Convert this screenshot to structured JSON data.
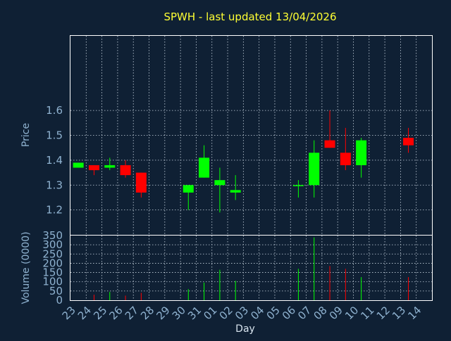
{
  "chart_data": {
    "type": "candlestick",
    "title": "SPWH - last updated 13/04/2026",
    "xlabel": "Day",
    "ylabel": "Price",
    "volume_label": "Volume (0000)",
    "x_ticks": [
      "23",
      "24",
      "25",
      "26",
      "27",
      "28",
      "29",
      "30",
      "31",
      "01",
      "02",
      "03",
      "04",
      "05",
      "06",
      "07",
      "08",
      "09",
      "10",
      "11",
      "12",
      "13",
      "14"
    ],
    "price_ylim": [
      1.1,
      1.9
    ],
    "price_ticks": [
      1.2,
      1.3,
      1.4,
      1.5,
      1.6
    ],
    "volume_ylim": [
      0,
      350
    ],
    "volume_ticks": [
      0,
      50,
      100,
      150,
      200,
      250,
      300,
      350
    ],
    "grid": true,
    "up_color": "#00ff00",
    "down_color": "#ff0000",
    "candles": [
      {
        "day": "23",
        "open": 1.37,
        "high": 1.39,
        "low": 1.37,
        "close": 1.39,
        "volume": 0
      },
      {
        "day": "24",
        "open": 1.38,
        "high": 1.38,
        "low": 1.34,
        "close": 1.36,
        "volume": 30
      },
      {
        "day": "25",
        "open": 1.37,
        "high": 1.41,
        "low": 1.36,
        "close": 1.38,
        "volume": 45
      },
      {
        "day": "26",
        "open": 1.38,
        "high": 1.4,
        "low": 1.33,
        "close": 1.34,
        "volume": 25
      },
      {
        "day": "27",
        "open": 1.35,
        "high": 1.35,
        "low": 1.25,
        "close": 1.27,
        "volume": 40
      },
      {
        "day": "30",
        "open": 1.27,
        "high": 1.3,
        "low": 1.2,
        "close": 1.3,
        "volume": 60
      },
      {
        "day": "31",
        "open": 1.33,
        "high": 1.46,
        "low": 1.33,
        "close": 1.41,
        "volume": 95
      },
      {
        "day": "01",
        "open": 1.3,
        "high": 1.37,
        "low": 1.19,
        "close": 1.32,
        "volume": 165
      },
      {
        "day": "02",
        "open": 1.27,
        "high": 1.34,
        "low": 1.24,
        "close": 1.28,
        "volume": 105
      },
      {
        "day": "06",
        "open": 1.3,
        "high": 1.32,
        "low": 1.25,
        "close": 1.3,
        "volume": 170
      },
      {
        "day": "07",
        "open": 1.3,
        "high": 1.48,
        "low": 1.25,
        "close": 1.43,
        "volume": 340
      },
      {
        "day": "08",
        "open": 1.48,
        "high": 1.6,
        "low": 1.45,
        "close": 1.45,
        "volume": 185
      },
      {
        "day": "09",
        "open": 1.43,
        "high": 1.53,
        "low": 1.36,
        "close": 1.38,
        "volume": 170
      },
      {
        "day": "10",
        "open": 1.38,
        "high": 1.49,
        "low": 1.33,
        "close": 1.48,
        "volume": 125
      },
      {
        "day": "13",
        "open": 1.49,
        "high": 1.53,
        "low": 1.43,
        "close": 1.46,
        "volume": 125
      }
    ]
  }
}
